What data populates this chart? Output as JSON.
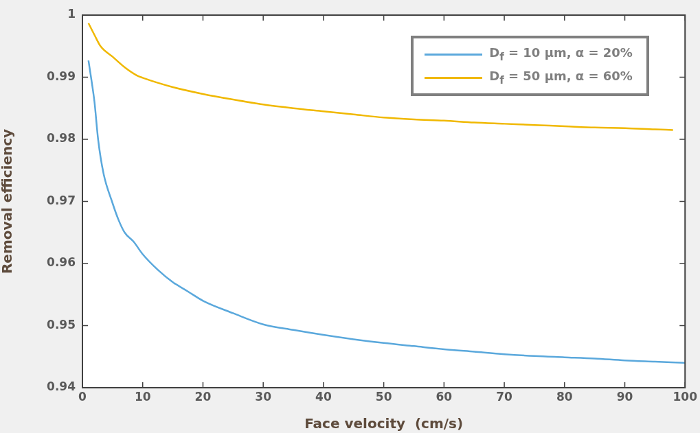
{
  "chart_data": {
    "type": "line",
    "xlabel": "Face velocity  (cm/s)",
    "ylabel": "Removal efficiency",
    "xlim": [
      0,
      100
    ],
    "xticks": [
      0,
      10,
      20,
      30,
      40,
      50,
      60,
      70,
      80,
      90,
      100
    ],
    "ylim": [
      0.94,
      1
    ],
    "yticks": [
      0.94,
      0.95,
      0.96,
      0.97,
      0.98,
      0.99,
      1
    ],
    "grid": false,
    "legend": "top right",
    "marker": "none",
    "line_style": "solid",
    "series": [
      {
        "name": "D$_{f}$ = 10 μm, α = 20%",
        "color": "#5aa8dc",
        "x": [
          1,
          1.5,
          2,
          2.6,
          3.5,
          4.9,
          6,
          7,
          8.5,
          10,
          12.5,
          15,
          17.5,
          20,
          25,
          30,
          35,
          40,
          45,
          50,
          55,
          60,
          65,
          70,
          75,
          80,
          85,
          90,
          95,
          100
        ],
        "values": [
          0.9927,
          0.9895,
          0.986,
          0.98,
          0.9745,
          0.97,
          0.967,
          0.965,
          0.9635,
          0.9615,
          0.959,
          0.957,
          0.9555,
          0.954,
          0.952,
          0.9502,
          0.9493,
          0.9485,
          0.9478,
          0.9472,
          0.9467,
          0.9462,
          0.9458,
          0.9454,
          0.9451,
          0.9449,
          0.9447,
          0.9444,
          0.9442,
          0.944
        ]
      },
      {
        "name": "D$_{f}$ = 50 μm, α = 60%",
        "color": "#f0b800",
        "x": [
          1,
          2,
          3,
          5,
          7,
          9,
          10,
          15,
          20,
          25,
          30,
          35,
          40,
          45,
          50,
          55,
          60,
          65,
          70,
          75,
          80,
          85,
          90,
          95,
          98
        ],
        "values": [
          0.9987,
          0.9968,
          0.995,
          0.9933,
          0.9916,
          0.9903,
          0.9899,
          0.9884,
          0.9873,
          0.9864,
          0.9856,
          0.985,
          0.9845,
          0.984,
          0.9835,
          0.9832,
          0.983,
          0.9827,
          0.9825,
          0.9823,
          0.9821,
          0.9819,
          0.9818,
          0.9816,
          0.9815
        ]
      }
    ]
  }
}
